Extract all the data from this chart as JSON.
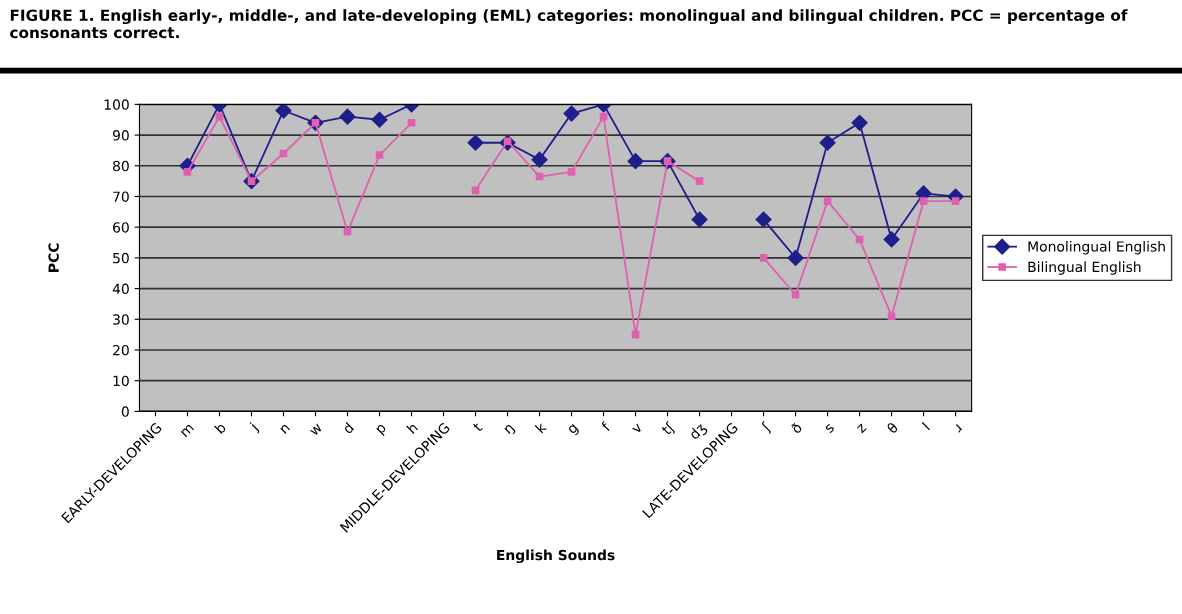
{
  "chart_data": {
    "type": "line",
    "title": "FIGURE 1. English early-, middle-, and late-developing (EML) categories: monolingual and bilingual children. PCC = percentage of consonants correct.",
    "xlabel": "English Sounds",
    "ylabel": "PCC",
    "categories": [
      "EARLY-DEVELOPING",
      "m",
      "b",
      "j",
      "n",
      "w",
      "d",
      "p",
      "h",
      "MIDDLE-DEVELOPING",
      "t",
      "ŋ",
      "k",
      "g",
      "f",
      "v",
      "tʃ",
      "dʒ",
      "LATE-DEVELOPING",
      "ʃ",
      "ð",
      "s",
      "z",
      "θ",
      "l",
      "ɹ"
    ],
    "series": [
      {
        "name": "Monolingual English",
        "color": "#1f1f8c",
        "marker": "diamond",
        "values": [
          null,
          80,
          100,
          75,
          98,
          94,
          96,
          95,
          100,
          null,
          87.5,
          87.5,
          82,
          97,
          100,
          81.5,
          81.5,
          62.5,
          null,
          62.5,
          50,
          87.5,
          94,
          56,
          71,
          70
        ]
      },
      {
        "name": "Bilingual English",
        "color": "#e060b0",
        "marker": "square",
        "values": [
          null,
          78,
          96,
          75,
          84,
          94,
          58.5,
          83.5,
          94,
          null,
          72,
          88,
          76.5,
          78,
          96,
          25,
          81.5,
          75,
          null,
          50,
          38,
          68.5,
          56,
          31,
          68.5,
          68.5
        ]
      }
    ],
    "ylim": [
      0,
      100
    ],
    "yticks": [
      0,
      10,
      20,
      30,
      40,
      50,
      60,
      70,
      80,
      90,
      100
    ],
    "grid": "y",
    "legend": "right",
    "line_style": "solid"
  }
}
